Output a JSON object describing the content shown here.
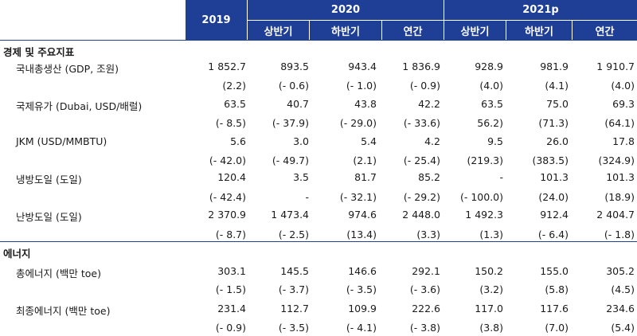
{
  "header": {
    "years": [
      "2019",
      "2020",
      "2021p"
    ],
    "sub": [
      "상반기",
      "하반기",
      "연간",
      "상반기",
      "하반기",
      "연간"
    ]
  },
  "sections": [
    {
      "title": "경제 및 주요지표",
      "rows": [
        {
          "label": "국내총생산 (GDP, 조원)",
          "values": [
            "1 852.7",
            "893.5",
            "943.4",
            "1 836.9",
            "928.9",
            "981.9",
            "1 910.7"
          ],
          "changes": [
            "(2.2)",
            "(- 0.6)",
            "(- 1.0)",
            "(- 0.9)",
            "(4.0)",
            "(4.1)",
            "(4.0)"
          ]
        },
        {
          "label": "국제유가 (Dubai, USD/배럴)",
          "values": [
            "63.5",
            "40.7",
            "43.8",
            "42.2",
            "63.5",
            "75.0",
            "69.3"
          ],
          "changes": [
            "(- 8.5)",
            "(- 37.9)",
            "(- 29.0)",
            "(- 33.6)",
            "56.2)",
            "(71.3)",
            "(64.1)"
          ]
        },
        {
          "label": "JKM (USD/MMBTU)",
          "values": [
            "5.6",
            "3.0",
            "5.4",
            "4.2",
            "9.5",
            "26.0",
            "17.8"
          ],
          "changes": [
            "(- 42.0)",
            "(- 49.7)",
            "(2.1)",
            "(- 25.4)",
            "(219.3)",
            "(383.5)",
            "(324.9)"
          ]
        },
        {
          "label": "냉방도일 (도일)",
          "values": [
            "120.4",
            "3.5",
            "81.7",
            "85.2",
            "-",
            "101.3",
            "101.3"
          ],
          "changes": [
            "(- 42.4)",
            "-",
            "(- 32.1)",
            "(- 29.2)",
            "(- 100.0)",
            "(24.0)",
            "(18.9)"
          ]
        },
        {
          "label": "난방도일 (도일)",
          "values": [
            "2 370.9",
            "1 473.4",
            "974.6",
            "2 448.0",
            "1 492.3",
            "912.4",
            "2 404.7"
          ],
          "changes": [
            "(- 8.7)",
            "(- 2.5)",
            "(13.4)",
            "(3.3)",
            "(1.3)",
            "(- 6.4)",
            "(- 1.8)"
          ]
        }
      ]
    },
    {
      "title": "에너지",
      "rows": [
        {
          "label": "총에너지 (백만 toe)",
          "values": [
            "303.1",
            "145.5",
            "146.6",
            "292.1",
            "150.2",
            "155.0",
            "305.2"
          ],
          "changes": [
            "(- 1.5)",
            "(- 3.7)",
            "(- 3.5)",
            "(- 3.6)",
            "(3.2)",
            "(5.8)",
            "(4.5)"
          ]
        },
        {
          "label": "최종에너지 (백만 toe)",
          "values": [
            "231.4",
            "112.7",
            "109.9",
            "222.6",
            "117.0",
            "117.6",
            "234.6"
          ],
          "changes": [
            "(- 0.9)",
            "(- 3.5)",
            "(- 4.1)",
            "(- 3.8)",
            "(3.8)",
            "(7.0)",
            "(5.4)"
          ]
        }
      ]
    }
  ]
}
